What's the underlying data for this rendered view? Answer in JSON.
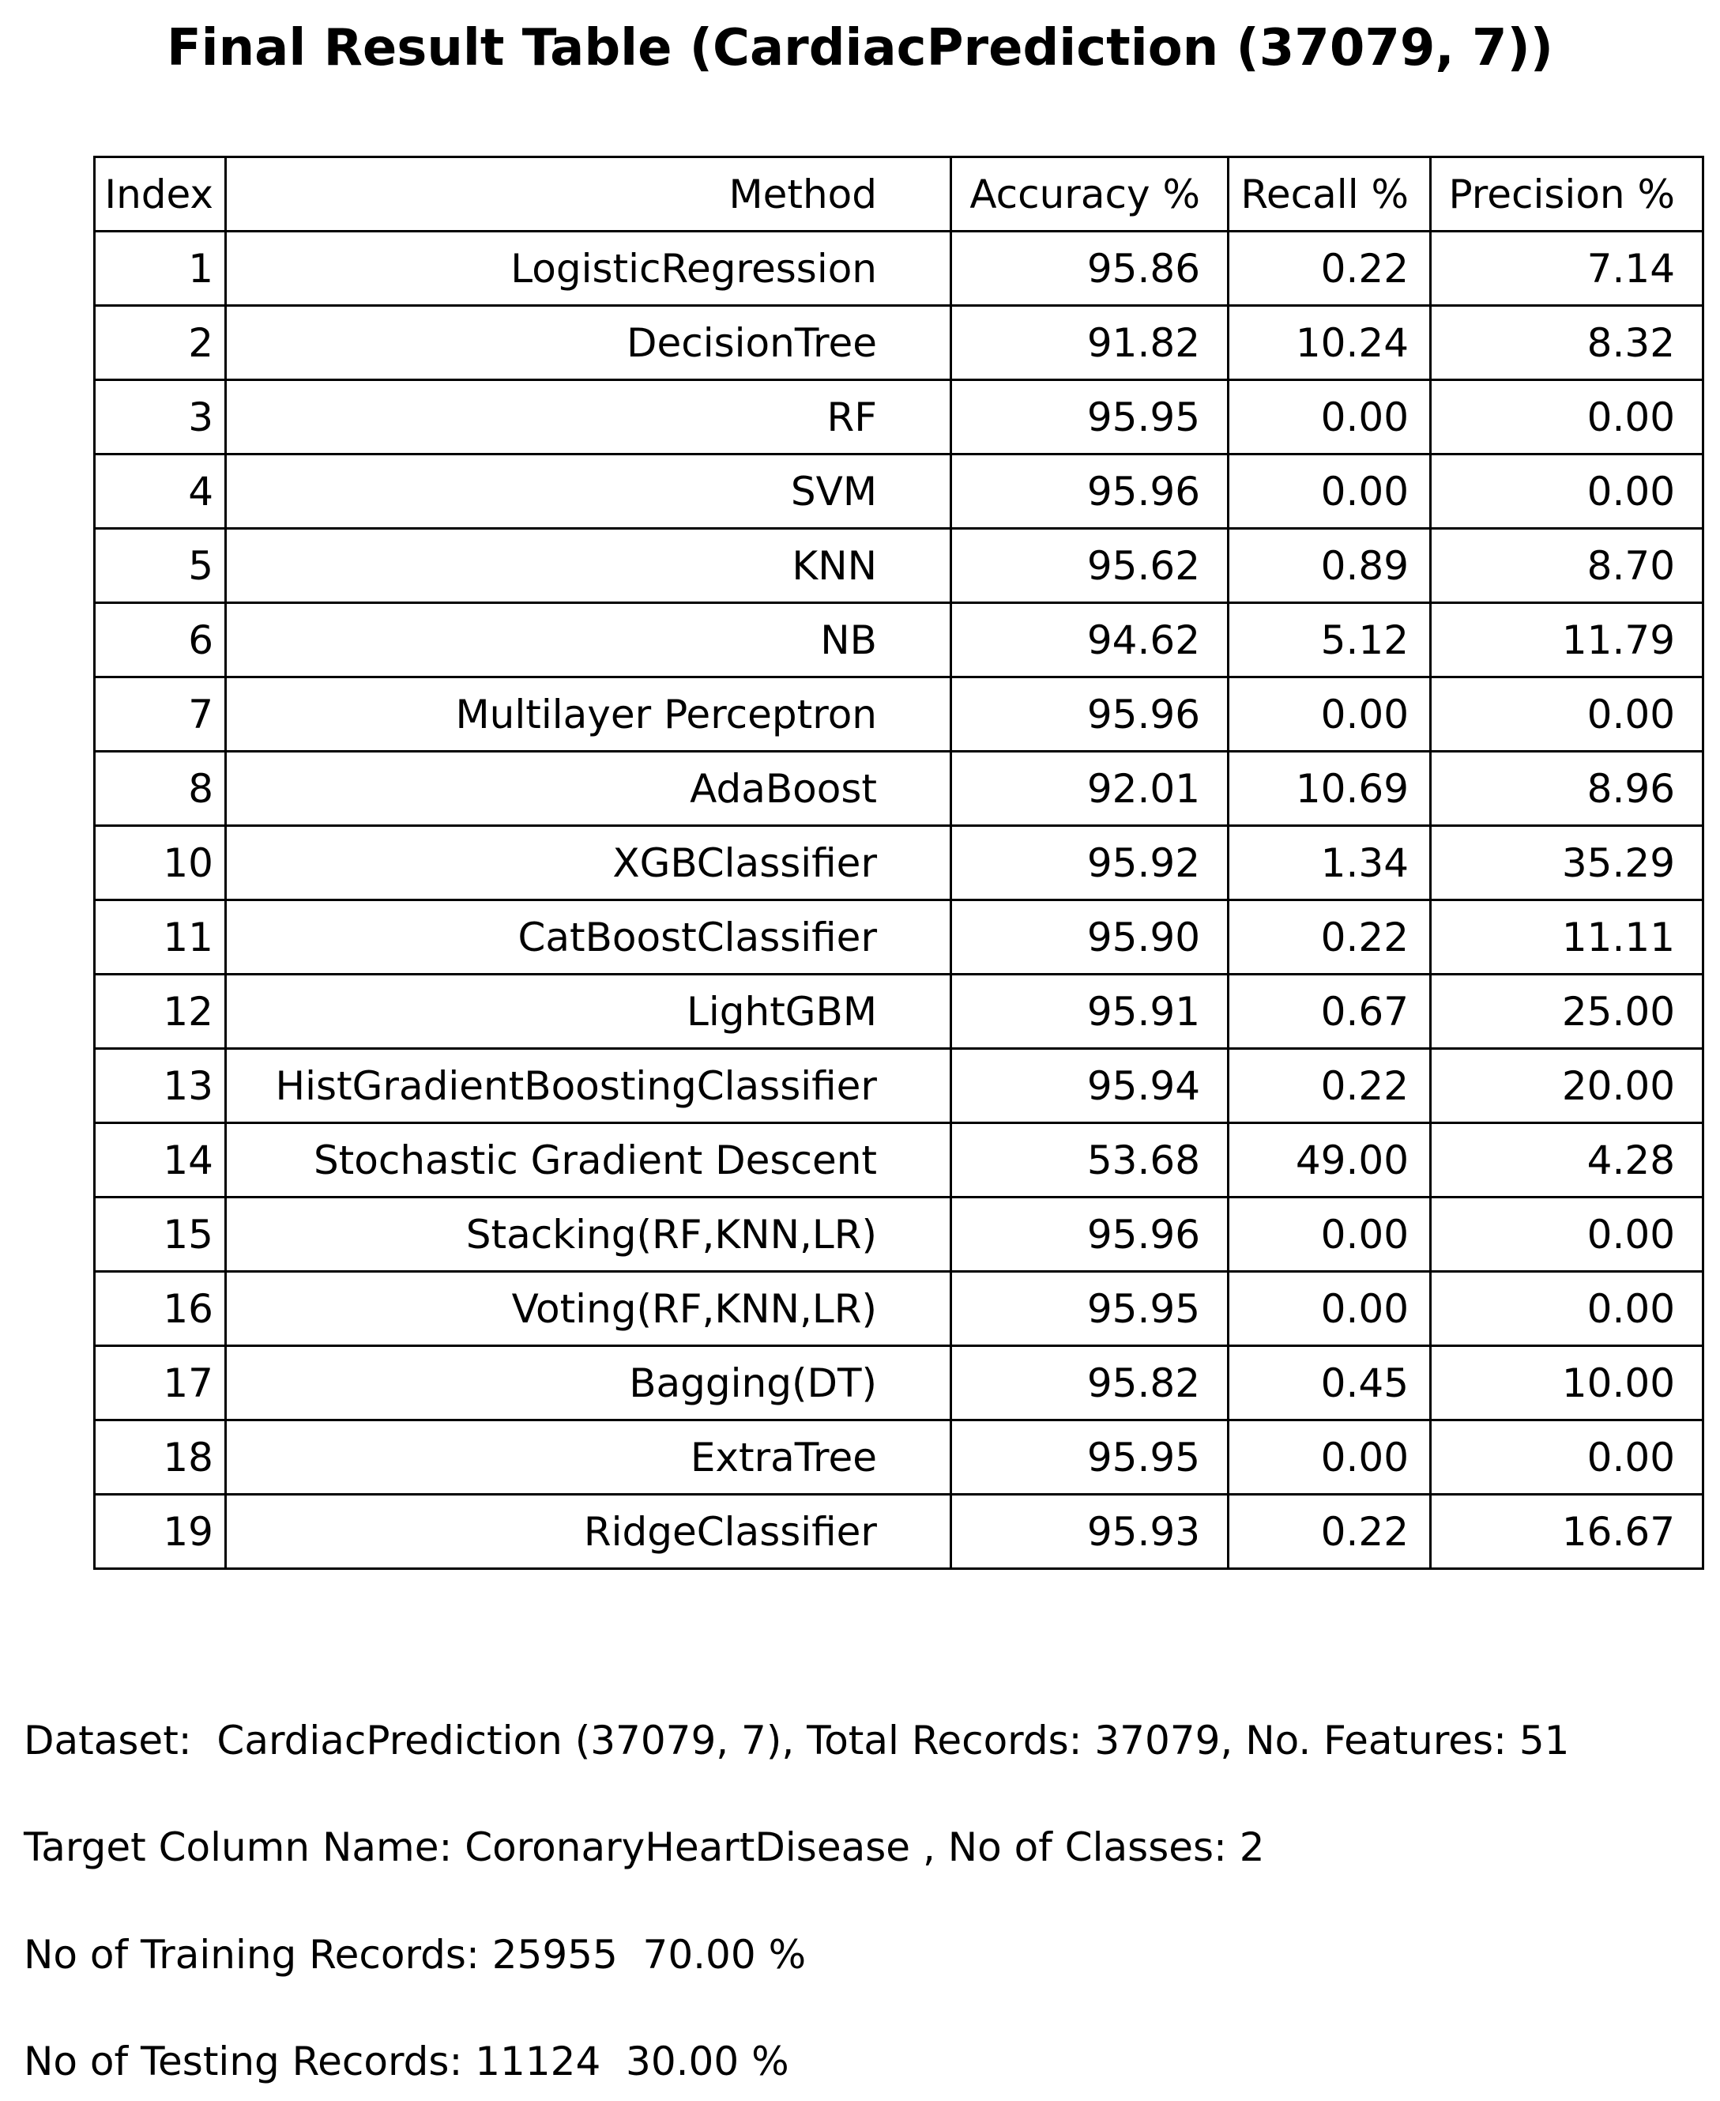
{
  "title": "Final Result Table (CardiacPrediction (37079, 7))",
  "table": {
    "headers": {
      "index": "Index",
      "method": "Method",
      "accuracy": "Accuracy %",
      "recall": "Recall %",
      "precision": "Precision %"
    },
    "rows": [
      {
        "index": "1",
        "method": "LogisticRegression",
        "accuracy": "95.86",
        "recall": "0.22",
        "precision": "7.14"
      },
      {
        "index": "2",
        "method": "DecisionTree",
        "accuracy": "91.82",
        "recall": "10.24",
        "precision": "8.32"
      },
      {
        "index": "3",
        "method": "RF",
        "accuracy": "95.95",
        "recall": "0.00",
        "precision": "0.00"
      },
      {
        "index": "4",
        "method": "SVM",
        "accuracy": "95.96",
        "recall": "0.00",
        "precision": "0.00"
      },
      {
        "index": "5",
        "method": "KNN",
        "accuracy": "95.62",
        "recall": "0.89",
        "precision": "8.70"
      },
      {
        "index": "6",
        "method": "NB",
        "accuracy": "94.62",
        "recall": "5.12",
        "precision": "11.79"
      },
      {
        "index": "7",
        "method": "Multilayer Perceptron",
        "accuracy": "95.96",
        "recall": "0.00",
        "precision": "0.00"
      },
      {
        "index": "8",
        "method": "AdaBoost",
        "accuracy": "92.01",
        "recall": "10.69",
        "precision": "8.96"
      },
      {
        "index": "10",
        "method": "XGBClassifier",
        "accuracy": "95.92",
        "recall": "1.34",
        "precision": "35.29"
      },
      {
        "index": "11",
        "method": "CatBoostClassifier",
        "accuracy": "95.90",
        "recall": "0.22",
        "precision": "11.11"
      },
      {
        "index": "12",
        "method": "LightGBM",
        "accuracy": "95.91",
        "recall": "0.67",
        "precision": "25.00"
      },
      {
        "index": "13",
        "method": "HistGradientBoostingClassifier",
        "accuracy": "95.94",
        "recall": "0.22",
        "precision": "20.00"
      },
      {
        "index": "14",
        "method": "Stochastic Gradient Descent",
        "accuracy": "53.68",
        "recall": "49.00",
        "precision": "4.28"
      },
      {
        "index": "15",
        "method": "Stacking(RF,KNN,LR)",
        "accuracy": "95.96",
        "recall": "0.00",
        "precision": "0.00"
      },
      {
        "index": "16",
        "method": "Voting(RF,KNN,LR)",
        "accuracy": "95.95",
        "recall": "0.00",
        "precision": "0.00"
      },
      {
        "index": "17",
        "method": "Bagging(DT)",
        "accuracy": "95.82",
        "recall": "0.45",
        "precision": "10.00"
      },
      {
        "index": "18",
        "method": "ExtraTree",
        "accuracy": "95.95",
        "recall": "0.00",
        "precision": "0.00"
      },
      {
        "index": "19",
        "method": "RidgeClassifier",
        "accuracy": "95.93",
        "recall": "0.22",
        "precision": "16.67"
      }
    ]
  },
  "footer": {
    "dataset": "Dataset:  CardiacPrediction (37079, 7), Total Records: 37079, No. Features: 51",
    "target": "Target Column Name: CoronaryHeartDisease , No of Classes: 2",
    "training": "No of Training Records: 25955  70.00 %",
    "testing": "No of Testing Records: 11124  30.00 %"
  }
}
